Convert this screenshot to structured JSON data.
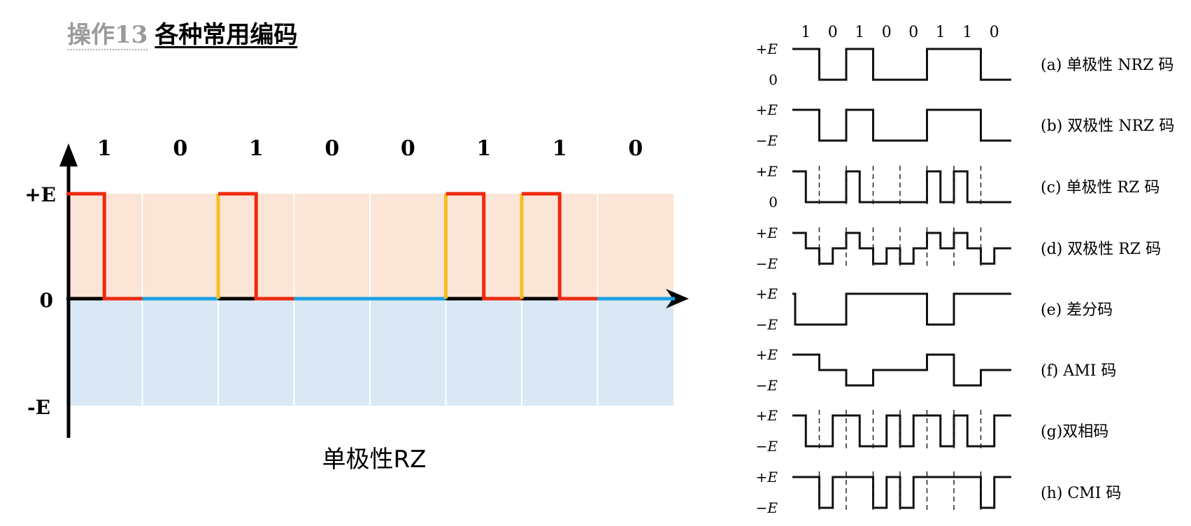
{
  "title": {
    "operation": "操作13",
    "main": "各种常用编码"
  },
  "main_chart": {
    "bits": [
      "1",
      "0",
      "1",
      "0",
      "0",
      "1",
      "1",
      "0"
    ],
    "levels": {
      "high": "+E",
      "zero": "0",
      "low": "-E"
    },
    "caption": "单极性RZ",
    "colors": {
      "positive_band": "#fbe5d6",
      "negative_band": "#dae8f5",
      "signal": "#ee2a10",
      "rising_edge": "#f5c020",
      "zero_line": "#1ba1e2",
      "axis": "#000000"
    }
  },
  "reference": {
    "bits": [
      "1",
      "0",
      "1",
      "0",
      "0",
      "1",
      "1",
      "0"
    ],
    "rows": [
      {
        "levels": [
          "+E",
          "0"
        ],
        "label": "(a) 单极性 NRZ 码"
      },
      {
        "levels": [
          "+E",
          "−E"
        ],
        "label": "(b) 双极性 NRZ 码"
      },
      {
        "levels": [
          "+E",
          "0"
        ],
        "label": "(c) 单极性 RZ 码"
      },
      {
        "levels": [
          "+E",
          "−E"
        ],
        "label": "(d) 双极性 RZ 码"
      },
      {
        "levels": [
          "+E",
          "−E"
        ],
        "label": "(e) 差分码"
      },
      {
        "levels": [
          "+E",
          "−E"
        ],
        "label": "(f) AMI 码"
      },
      {
        "levels": [
          "+E",
          "−E"
        ],
        "label": "(g)双相码"
      },
      {
        "levels": [
          "+E",
          "−E"
        ],
        "label": "(h) CMI 码"
      }
    ]
  }
}
